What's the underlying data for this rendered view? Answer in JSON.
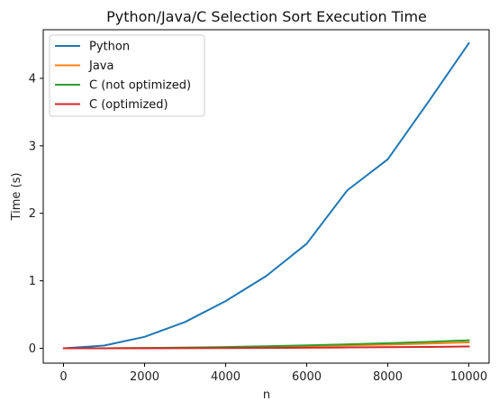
{
  "chart_data": {
    "type": "line",
    "title": "Python/Java/C Selection Sort Execution Time",
    "xlabel": "n",
    "ylabel": "Time (s)",
    "xlim": [
      -500,
      10500
    ],
    "ylim": [
      -0.22,
      4.72
    ],
    "x": [
      10,
      1000,
      2000,
      3000,
      4000,
      5000,
      6000,
      7000,
      8000,
      9000,
      10000
    ],
    "xticks": [
      0,
      2000,
      4000,
      6000,
      8000,
      10000
    ],
    "yticks": [
      0,
      1,
      2,
      3,
      4
    ],
    "grid": false,
    "legend_position": "upper-left",
    "series": [
      {
        "name": "Python",
        "color": "#1f77b4",
        "values": [
          0.0,
          0.04,
          0.17,
          0.39,
          0.7,
          1.07,
          1.55,
          2.34,
          2.8,
          3.65,
          4.52
        ]
      },
      {
        "name": "Java",
        "color": "#ff7f0e",
        "values": [
          0.0,
          0.001,
          0.004,
          0.008,
          0.014,
          0.022,
          0.032,
          0.043,
          0.056,
          0.071,
          0.088
        ]
      },
      {
        "name": "C (not optimized)",
        "color": "#2ca02c",
        "values": [
          0.0,
          0.001,
          0.005,
          0.011,
          0.019,
          0.03,
          0.043,
          0.058,
          0.076,
          0.096,
          0.119
        ]
      },
      {
        "name": "C (optimized)",
        "color": "#d62728",
        "values": [
          0.0,
          0.0003,
          0.001,
          0.002,
          0.004,
          0.006,
          0.009,
          0.013,
          0.017,
          0.021,
          0.026
        ]
      }
    ]
  }
}
